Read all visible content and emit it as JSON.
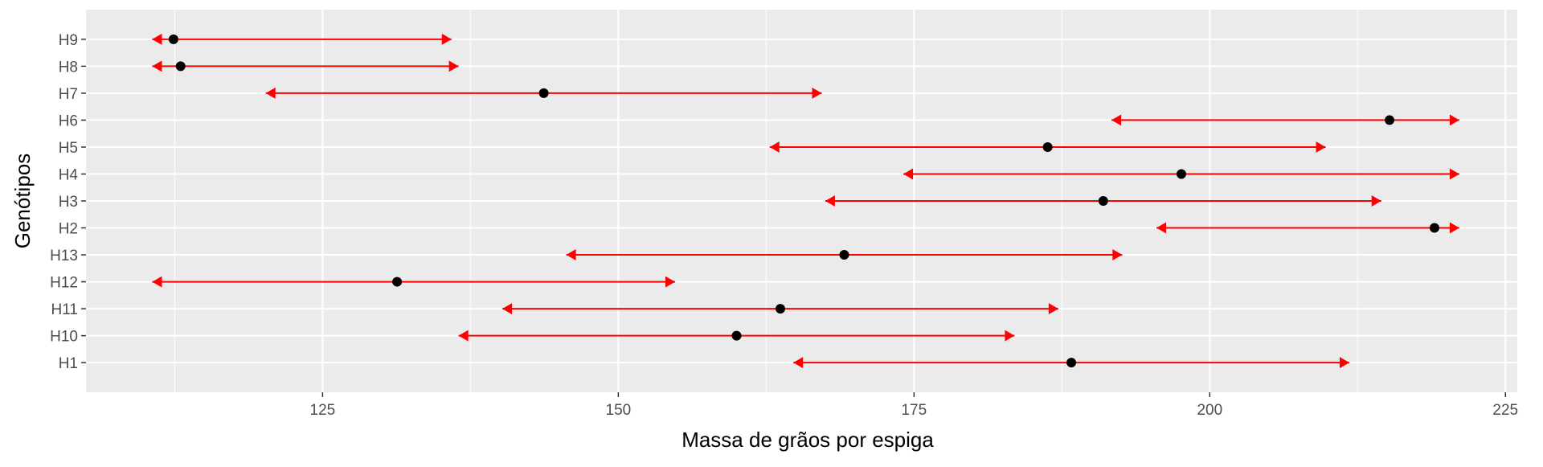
{
  "chart_data": {
    "type": "errorbar",
    "xlabel": "Massa de grãos por espiga",
    "ylabel": "Genótipos",
    "xlim": [
      105,
      226
    ],
    "x_ticks": [
      125,
      150,
      175,
      200,
      225
    ],
    "x_tick_labels": [
      "125",
      "150",
      "175",
      "200",
      "225"
    ],
    "grid": true,
    "colors": {
      "panel_background": "#ebebeb",
      "grid": "#ffffff",
      "point": "#000000",
      "interval": "#ff0000"
    },
    "categories": [
      "H1",
      "H10",
      "H11",
      "H12",
      "H13",
      "H2",
      "H3",
      "H4",
      "H5",
      "H6",
      "H7",
      "H8",
      "H9"
    ],
    "series": [
      {
        "points": [
          {
            "genotype": "H1",
            "mean": 188.3,
            "lower": 164.8,
            "upper": 211.8
          },
          {
            "genotype": "H10",
            "mean": 160.0,
            "lower": 136.5,
            "upper": 183.5
          },
          {
            "genotype": "H11",
            "mean": 163.7,
            "lower": 140.2,
            "upper": 187.2
          },
          {
            "genotype": "H12",
            "mean": 131.3,
            "lower": 110.6,
            "upper": 154.8
          },
          {
            "genotype": "H13",
            "mean": 169.1,
            "lower": 145.6,
            "upper": 192.6
          },
          {
            "genotype": "H2",
            "mean": 219.0,
            "lower": 195.5,
            "upper": 221.1
          },
          {
            "genotype": "H3",
            "mean": 191.0,
            "lower": 167.5,
            "upper": 214.5
          },
          {
            "genotype": "H4",
            "mean": 197.6,
            "lower": 174.1,
            "upper": 221.1
          },
          {
            "genotype": "H5",
            "mean": 186.3,
            "lower": 162.8,
            "upper": 209.8
          },
          {
            "genotype": "H6",
            "mean": 215.2,
            "lower": 191.7,
            "upper": 221.1
          },
          {
            "genotype": "H7",
            "mean": 143.7,
            "lower": 120.2,
            "upper": 167.2
          },
          {
            "genotype": "H8",
            "mean": 113.0,
            "lower": 110.6,
            "upper": 136.5
          },
          {
            "genotype": "H9",
            "mean": 112.4,
            "lower": 110.6,
            "upper": 135.9
          }
        ]
      }
    ]
  }
}
